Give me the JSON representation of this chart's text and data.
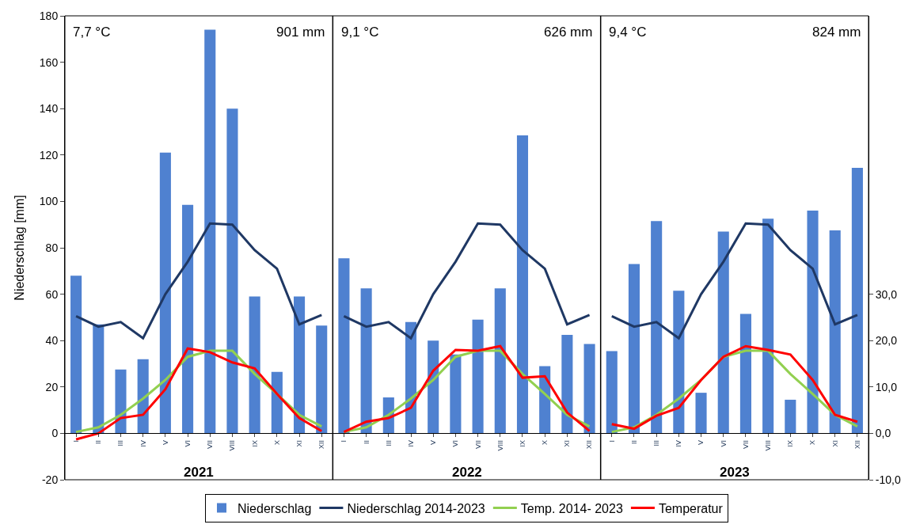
{
  "chart_data": {
    "type": "bar",
    "ylabel": "Niederschlag [mm]",
    "annotations": [
      "7,7 °C",
      "901 mm",
      "2021",
      "9,1 °C",
      "626 mm",
      "2022",
      "9,4 °C",
      "824 mm",
      "2023"
    ],
    "categories": [
      "I",
      "II",
      "III",
      "IV",
      "V",
      "VI",
      "VII",
      "VIII",
      "IX",
      "X",
      "XI",
      "XII",
      "I",
      "II",
      "III",
      "IV",
      "V",
      "VI",
      "VII",
      "VIII",
      "IX",
      "X",
      "XI",
      "XII",
      "I",
      "II",
      "III",
      "IV",
      "V",
      "VI",
      "VII",
      "VIII",
      "IX",
      "X",
      "XI",
      "XII"
    ],
    "series": [
      {
        "name": "Niederschlag",
        "color": "#4f81d0",
        "values": [
          68,
          47,
          27.5,
          32,
          121,
          98.5,
          174,
          140,
          59,
          26.5,
          59,
          46.5,
          75.5,
          62.5,
          15.5,
          48,
          40,
          34,
          49,
          62.5,
          128.5,
          29,
          42.5,
          38.5,
          35.5,
          73,
          91.5,
          61.5,
          17.5,
          87,
          51.5,
          92.5,
          14.5,
          96,
          87.5,
          114.5
        ]
      },
      {
        "name": "Niederschlag 2014-2023",
        "type": "line",
        "color": "#1f3864",
        "values": [
          50.5,
          46,
          48,
          41,
          60,
          74,
          90.5,
          90,
          79,
          71,
          47,
          51,
          50.5,
          46,
          48,
          41,
          60,
          74,
          90.5,
          90,
          79,
          71,
          47,
          51,
          50.5,
          46,
          48,
          41,
          60,
          74,
          90.5,
          90,
          79,
          71,
          47,
          51
        ]
      },
      {
        "name": "Temp. 2014- 2023",
        "type": "line",
        "axis": "y2",
        "color": "#92d050",
        "values": [
          0.3,
          1.3,
          4,
          7.5,
          11.5,
          16.5,
          17.8,
          17.8,
          12.8,
          8.5,
          4,
          1.5,
          0.3,
          1.3,
          4,
          7.5,
          11.5,
          16.5,
          17.8,
          17.8,
          12.8,
          8.5,
          4,
          1.5,
          0.3,
          1.3,
          4,
          7.5,
          11.5,
          16.5,
          17.8,
          17.8,
          12.8,
          8.5,
          4,
          1.5
        ]
      },
      {
        "name": "Temperatur",
        "type": "line",
        "axis": "y2",
        "color": "#ff0000",
        "values": [
          -1.3,
          0,
          3.3,
          4,
          9.5,
          18.3,
          17.5,
          15.3,
          14,
          8.5,
          3.3,
          0.5,
          0.3,
          2.5,
          3.3,
          5.5,
          13.5,
          18,
          17.8,
          18.8,
          12,
          12.3,
          4.5,
          0.5,
          2,
          1,
          3.8,
          5.5,
          11.5,
          16.5,
          18.8,
          18,
          17,
          11.5,
          4,
          2.5
        ]
      }
    ],
    "ylim": [
      -20,
      180
    ],
    "yticks": [
      -20,
      0,
      20,
      40,
      60,
      80,
      100,
      120,
      140,
      160,
      180
    ],
    "y2lim": [
      -10,
      90
    ],
    "y2ticks": [
      {
        "value": -10,
        "label": "-10,0"
      },
      {
        "value": 0,
        "label": "0,0"
      },
      {
        "value": 10,
        "label": "10,0"
      },
      {
        "value": 20,
        "label": "20,0"
      },
      {
        "value": 30,
        "label": "30,0"
      }
    ],
    "legend": "bottom"
  }
}
